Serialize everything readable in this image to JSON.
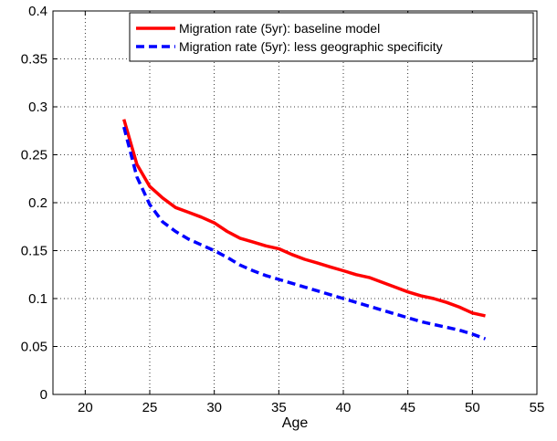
{
  "chart_data": {
    "type": "line",
    "xlabel": "Age",
    "ylabel": "",
    "xlim": [
      17.5,
      55
    ],
    "ylim": [
      0,
      0.4
    ],
    "xticks": [
      20,
      25,
      30,
      35,
      40,
      45,
      50,
      55
    ],
    "yticks": [
      0,
      0.05,
      0.1,
      0.15,
      0.2,
      0.25,
      0.3,
      0.35,
      0.4
    ],
    "xtick_labels": [
      "20",
      "25",
      "30",
      "35",
      "40",
      "45",
      "50",
      "55"
    ],
    "ytick_labels": [
      "0",
      "0.05",
      "0.1",
      "0.15",
      "0.2",
      "0.25",
      "0.3",
      "0.35",
      "0.4"
    ],
    "grid": true,
    "legend_position": "top-right",
    "series": [
      {
        "name": "Migration rate (5yr): baseline model",
        "color": "#ff0000",
        "style": "solid",
        "x": [
          23,
          24,
          25,
          26,
          27,
          28,
          29,
          30,
          31,
          32,
          33,
          34,
          35,
          36,
          37,
          38,
          39,
          40,
          41,
          42,
          43,
          44,
          45,
          46,
          47,
          48,
          49,
          50,
          51
        ],
        "y": [
          0.287,
          0.24,
          0.217,
          0.205,
          0.195,
          0.19,
          0.185,
          0.179,
          0.17,
          0.163,
          0.159,
          0.155,
          0.152,
          0.146,
          0.141,
          0.137,
          0.133,
          0.129,
          0.125,
          0.122,
          0.117,
          0.112,
          0.107,
          0.103,
          0.1,
          0.096,
          0.091,
          0.085,
          0.082
        ]
      },
      {
        "name": "Migration rate (5yr): less geographic specificity",
        "color": "#0000ff",
        "style": "dashed",
        "x": [
          23,
          24,
          25,
          26,
          27,
          28,
          29,
          30,
          31,
          32,
          33,
          34,
          35,
          36,
          37,
          38,
          39,
          40,
          41,
          42,
          43,
          44,
          45,
          46,
          47,
          48,
          49,
          50,
          51
        ],
        "y": [
          0.279,
          0.227,
          0.198,
          0.18,
          0.17,
          0.162,
          0.156,
          0.15,
          0.143,
          0.135,
          0.129,
          0.124,
          0.12,
          0.116,
          0.112,
          0.108,
          0.104,
          0.1,
          0.096,
          0.092,
          0.088,
          0.084,
          0.08,
          0.076,
          0.073,
          0.07,
          0.067,
          0.063,
          0.058
        ]
      }
    ]
  }
}
